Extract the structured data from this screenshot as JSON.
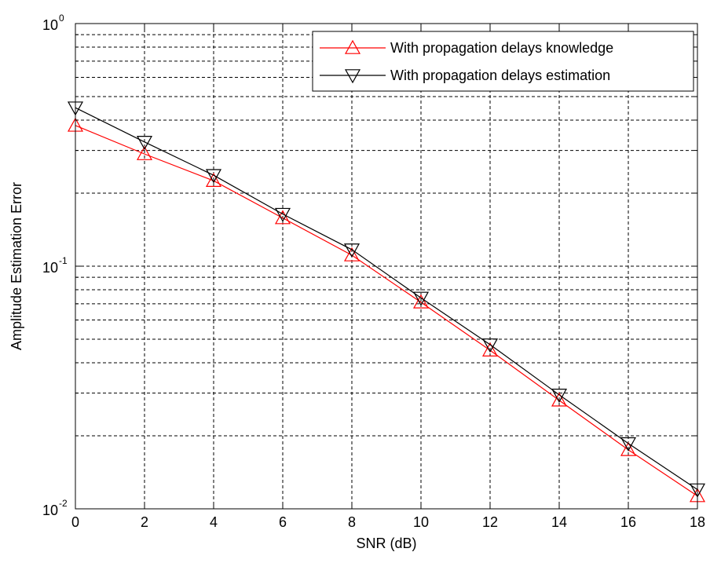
{
  "chart_data": {
    "type": "line",
    "title": "",
    "xlabel": "SNR (dB)",
    "ylabel": "Amplitude Estimation Error",
    "xlim": [
      0,
      18
    ],
    "ylim": [
      0.01,
      1
    ],
    "yscale": "log",
    "grid": true,
    "legend_position": "top-right",
    "x_ticks": [
      "0",
      "2",
      "4",
      "6",
      "8",
      "10",
      "12",
      "14",
      "16",
      "18"
    ],
    "y_ticks": [
      {
        "base": "10",
        "exp": "0",
        "value": 1
      },
      {
        "base": "10",
        "exp": "-1",
        "value": 0.1
      },
      {
        "base": "10",
        "exp": "-2",
        "value": 0.01
      }
    ],
    "x": [
      0,
      2,
      4,
      6,
      8,
      10,
      12,
      14,
      16,
      18
    ],
    "series": [
      {
        "name": "With propagation delays knowledge",
        "color": "#ff0000",
        "marker": "triangle-up",
        "values": [
          0.38,
          0.29,
          0.225,
          0.158,
          0.111,
          0.071,
          0.045,
          0.028,
          0.0175,
          0.0113
        ]
      },
      {
        "name": "With propagation delays estimation",
        "color": "#000000",
        "marker": "triangle-down",
        "values": [
          0.45,
          0.325,
          0.237,
          0.164,
          0.117,
          0.074,
          0.0475,
          0.0295,
          0.0186,
          0.012
        ]
      }
    ]
  }
}
